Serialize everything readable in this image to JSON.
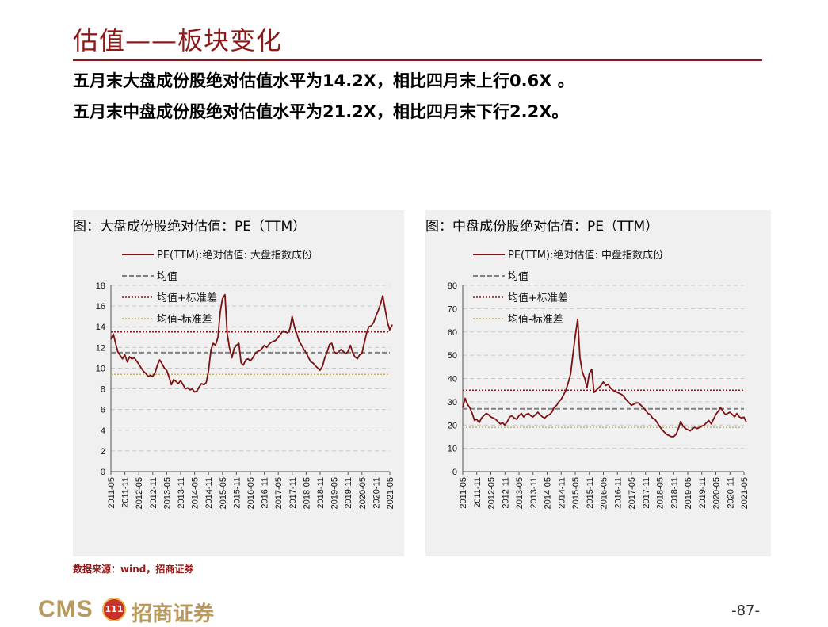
{
  "page": {
    "title": "估值——板块变化",
    "subtitle_1": "五月末大盘成份股绝对估值水平为14.2X，相比四月末上行0.6X 。",
    "subtitle_2": "五月末中盘成份股绝对估值水平为21.2X，相比四月末下行2.2X。",
    "source": "数据来源：wind，招商证券",
    "page_number": "-87-",
    "logo_text": "CMS",
    "logo_name": "招商证券",
    "logo_coin": "111"
  },
  "colors": {
    "accent": "#8B1A1A",
    "series": "#7B1113",
    "mean": "#808080",
    "plus_sd": "#8B1A1A",
    "minus_sd": "#C8B560"
  },
  "legend_labels": [
    "均值",
    "均值+标准差",
    "均值-标准差"
  ],
  "x_ticks": [
    "2011-05",
    "2011-11",
    "2012-05",
    "2012-11",
    "2013-05",
    "2013-11",
    "2014-05",
    "2014-11",
    "2015-05",
    "2015-11",
    "2016-05",
    "2016-11",
    "2017-05",
    "2017-11",
    "2018-05",
    "2018-11",
    "2019-05",
    "2019-11",
    "2020-05",
    "2020-11",
    "2021-05"
  ],
  "chart_data": [
    {
      "type": "line",
      "title": "图：大盘成份股绝对估值：PE（TTM）",
      "ylim": [
        0,
        18
      ],
      "yticks": [
        0,
        2,
        4,
        6,
        8,
        10,
        12,
        14,
        16,
        18
      ],
      "grid": true,
      "legend_position": "top-left",
      "series": [
        {
          "name": "PE(TTM):绝对估值: 大盘指数成份",
          "points": [
            [
              2011.33,
              12.8
            ],
            [
              2011.42,
              13.3
            ],
            [
              2011.5,
              12.4
            ],
            [
              2011.58,
              11.6
            ],
            [
              2011.67,
              11.2
            ],
            [
              2011.75,
              10.9
            ],
            [
              2011.83,
              11.3
            ],
            [
              2011.92,
              10.6
            ],
            [
              2012.0,
              11.1
            ],
            [
              2012.08,
              10.9
            ],
            [
              2012.17,
              11.0
            ],
            [
              2012.25,
              10.7
            ],
            [
              2012.33,
              10.4
            ],
            [
              2012.42,
              10.0
            ],
            [
              2012.5,
              9.7
            ],
            [
              2012.58,
              9.5
            ],
            [
              2012.67,
              9.2
            ],
            [
              2012.75,
              9.3
            ],
            [
              2012.83,
              9.2
            ],
            [
              2012.92,
              9.6
            ],
            [
              2013.0,
              10.3
            ],
            [
              2013.08,
              10.8
            ],
            [
              2013.17,
              10.4
            ],
            [
              2013.25,
              10.0
            ],
            [
              2013.33,
              9.8
            ],
            [
              2013.42,
              9.1
            ],
            [
              2013.5,
              8.4
            ],
            [
              2013.58,
              8.9
            ],
            [
              2013.67,
              8.7
            ],
            [
              2013.75,
              8.5
            ],
            [
              2013.83,
              8.8
            ],
            [
              2013.92,
              8.4
            ],
            [
              2014.0,
              8.0
            ],
            [
              2014.08,
              8.1
            ],
            [
              2014.17,
              7.9
            ],
            [
              2014.25,
              8.0
            ],
            [
              2014.33,
              7.7
            ],
            [
              2014.42,
              7.8
            ],
            [
              2014.5,
              8.2
            ],
            [
              2014.58,
              8.5
            ],
            [
              2014.67,
              8.4
            ],
            [
              2014.75,
              8.6
            ],
            [
              2014.83,
              9.7
            ],
            [
              2014.92,
              11.8
            ],
            [
              2015.0,
              12.4
            ],
            [
              2015.08,
              12.2
            ],
            [
              2015.17,
              13.0
            ],
            [
              2015.25,
              15.4
            ],
            [
              2015.33,
              16.7
            ],
            [
              2015.42,
              17.1
            ],
            [
              2015.5,
              13.4
            ],
            [
              2015.58,
              12.0
            ],
            [
              2015.67,
              11.0
            ],
            [
              2015.75,
              11.9
            ],
            [
              2015.83,
              12.2
            ],
            [
              2015.92,
              12.4
            ],
            [
              2016.0,
              10.5
            ],
            [
              2016.08,
              10.3
            ],
            [
              2016.17,
              10.8
            ],
            [
              2016.25,
              10.9
            ],
            [
              2016.33,
              10.7
            ],
            [
              2016.42,
              11.0
            ],
            [
              2016.5,
              11.4
            ],
            [
              2016.58,
              11.6
            ],
            [
              2016.67,
              11.7
            ],
            [
              2016.75,
              11.9
            ],
            [
              2016.83,
              12.2
            ],
            [
              2016.92,
              12.0
            ],
            [
              2017.0,
              12.3
            ],
            [
              2017.08,
              12.5
            ],
            [
              2017.17,
              12.6
            ],
            [
              2017.25,
              12.7
            ],
            [
              2017.33,
              13.0
            ],
            [
              2017.42,
              13.3
            ],
            [
              2017.5,
              13.6
            ],
            [
              2017.58,
              13.5
            ],
            [
              2017.67,
              13.4
            ],
            [
              2017.75,
              13.8
            ],
            [
              2017.83,
              15.0
            ],
            [
              2017.92,
              13.9
            ],
            [
              2018.0,
              13.3
            ],
            [
              2018.08,
              12.6
            ],
            [
              2018.17,
              12.2
            ],
            [
              2018.25,
              11.8
            ],
            [
              2018.33,
              11.5
            ],
            [
              2018.42,
              11.0
            ],
            [
              2018.5,
              10.6
            ],
            [
              2018.58,
              10.5
            ],
            [
              2018.67,
              10.2
            ],
            [
              2018.75,
              10.0
            ],
            [
              2018.83,
              9.8
            ],
            [
              2018.92,
              10.2
            ],
            [
              2019.0,
              11.0
            ],
            [
              2019.08,
              11.5
            ],
            [
              2019.17,
              12.3
            ],
            [
              2019.25,
              12.4
            ],
            [
              2019.33,
              11.6
            ],
            [
              2019.42,
              11.4
            ],
            [
              2019.5,
              11.6
            ],
            [
              2019.58,
              11.8
            ],
            [
              2019.67,
              11.6
            ],
            [
              2019.75,
              11.4
            ],
            [
              2019.83,
              11.6
            ],
            [
              2019.92,
              12.2
            ],
            [
              2020.0,
              11.5
            ],
            [
              2020.08,
              11.1
            ],
            [
              2020.17,
              10.9
            ],
            [
              2020.25,
              11.3
            ],
            [
              2020.33,
              11.4
            ],
            [
              2020.42,
              12.5
            ],
            [
              2020.5,
              13.4
            ],
            [
              2020.58,
              14.0
            ],
            [
              2020.67,
              14.1
            ],
            [
              2020.75,
              14.4
            ],
            [
              2020.83,
              15.0
            ],
            [
              2020.92,
              15.6
            ],
            [
              2021.0,
              16.2
            ],
            [
              2021.08,
              17.0
            ],
            [
              2021.17,
              15.6
            ],
            [
              2021.25,
              14.4
            ],
            [
              2021.33,
              13.7
            ],
            [
              2021.42,
              14.2
            ]
          ]
        }
      ],
      "reference_lines": {
        "mean": 11.5,
        "mean_plus_sd": 13.5,
        "mean_minus_sd": 9.4
      }
    },
    {
      "type": "line",
      "title": "图：中盘成份股绝对估值：PE（TTM）",
      "ylim": [
        0,
        80
      ],
      "yticks": [
        0,
        10,
        20,
        30,
        40,
        50,
        60,
        70,
        80
      ],
      "grid": true,
      "legend_position": "top-left",
      "series": [
        {
          "name": "PE(TTM):绝对估值: 中盘指数成份",
          "points": [
            [
              2011.33,
              27.5
            ],
            [
              2011.42,
              31.5
            ],
            [
              2011.5,
              29.0
            ],
            [
              2011.58,
              27.5
            ],
            [
              2011.67,
              25.0
            ],
            [
              2011.75,
              22.0
            ],
            [
              2011.83,
              22.5
            ],
            [
              2011.92,
              21.0
            ],
            [
              2012.0,
              23.0
            ],
            [
              2012.08,
              24.0
            ],
            [
              2012.17,
              25.0
            ],
            [
              2012.25,
              24.5
            ],
            [
              2012.33,
              23.5
            ],
            [
              2012.42,
              23.0
            ],
            [
              2012.5,
              22.5
            ],
            [
              2012.58,
              21.5
            ],
            [
              2012.67,
              20.5
            ],
            [
              2012.75,
              21.0
            ],
            [
              2012.83,
              20.0
            ],
            [
              2012.92,
              21.5
            ],
            [
              2013.0,
              23.5
            ],
            [
              2013.08,
              24.0
            ],
            [
              2013.17,
              23.0
            ],
            [
              2013.25,
              22.5
            ],
            [
              2013.33,
              24.0
            ],
            [
              2013.42,
              25.0
            ],
            [
              2013.5,
              23.5
            ],
            [
              2013.58,
              24.5
            ],
            [
              2013.67,
              25.0
            ],
            [
              2013.75,
              24.0
            ],
            [
              2013.83,
              23.5
            ],
            [
              2013.92,
              24.5
            ],
            [
              2014.0,
              25.5
            ],
            [
              2014.08,
              24.5
            ],
            [
              2014.17,
              23.5
            ],
            [
              2014.25,
              23.0
            ],
            [
              2014.33,
              24.0
            ],
            [
              2014.42,
              24.5
            ],
            [
              2014.5,
              25.5
            ],
            [
              2014.58,
              27.5
            ],
            [
              2014.67,
              28.5
            ],
            [
              2014.75,
              30.0
            ],
            [
              2014.83,
              31.0
            ],
            [
              2014.92,
              33.0
            ],
            [
              2015.0,
              35.0
            ],
            [
              2015.08,
              38.0
            ],
            [
              2015.17,
              42.0
            ],
            [
              2015.25,
              50.0
            ],
            [
              2015.33,
              58.0
            ],
            [
              2015.42,
              65.5
            ],
            [
              2015.5,
              49.0
            ],
            [
              2015.58,
              43.0
            ],
            [
              2015.67,
              40.0
            ],
            [
              2015.75,
              36.0
            ],
            [
              2015.83,
              42.0
            ],
            [
              2015.92,
              44.0
            ],
            [
              2016.0,
              34.0
            ],
            [
              2016.08,
              35.0
            ],
            [
              2016.17,
              36.0
            ],
            [
              2016.25,
              37.0
            ],
            [
              2016.33,
              38.5
            ],
            [
              2016.42,
              37.0
            ],
            [
              2016.5,
              37.5
            ],
            [
              2016.58,
              36.0
            ],
            [
              2016.67,
              35.0
            ],
            [
              2016.75,
              34.5
            ],
            [
              2016.83,
              34.0
            ],
            [
              2016.92,
              33.5
            ],
            [
              2017.0,
              33.0
            ],
            [
              2017.08,
              32.0
            ],
            [
              2017.17,
              30.5
            ],
            [
              2017.25,
              29.5
            ],
            [
              2017.33,
              28.5
            ],
            [
              2017.42,
              29.0
            ],
            [
              2017.5,
              29.5
            ],
            [
              2017.58,
              29.5
            ],
            [
              2017.67,
              28.5
            ],
            [
              2017.75,
              27.5
            ],
            [
              2017.83,
              26.5
            ],
            [
              2017.92,
              25.0
            ],
            [
              2018.0,
              24.5
            ],
            [
              2018.08,
              23.0
            ],
            [
              2018.17,
              22.5
            ],
            [
              2018.25,
              21.0
            ],
            [
              2018.33,
              19.5
            ],
            [
              2018.42,
              18.0
            ],
            [
              2018.5,
              17.0
            ],
            [
              2018.58,
              16.0
            ],
            [
              2018.67,
              15.5
            ],
            [
              2018.75,
              15.0
            ],
            [
              2018.83,
              15.0
            ],
            [
              2018.92,
              16.0
            ],
            [
              2019.0,
              18.5
            ],
            [
              2019.08,
              21.5
            ],
            [
              2019.17,
              19.5
            ],
            [
              2019.25,
              18.5
            ],
            [
              2019.33,
              18.0
            ],
            [
              2019.42,
              17.5
            ],
            [
              2019.5,
              18.5
            ],
            [
              2019.58,
              19.0
            ],
            [
              2019.67,
              18.5
            ],
            [
              2019.75,
              19.0
            ],
            [
              2019.83,
              19.5
            ],
            [
              2019.92,
              20.0
            ],
            [
              2020.0,
              21.0
            ],
            [
              2020.08,
              22.0
            ],
            [
              2020.17,
              20.5
            ],
            [
              2020.25,
              22.5
            ],
            [
              2020.33,
              24.5
            ],
            [
              2020.42,
              26.0
            ],
            [
              2020.5,
              27.5
            ],
            [
              2020.58,
              26.0
            ],
            [
              2020.67,
              24.5
            ],
            [
              2020.75,
              25.0
            ],
            [
              2020.83,
              25.5
            ],
            [
              2020.92,
              24.5
            ],
            [
              2021.0,
              23.5
            ],
            [
              2021.08,
              25.0
            ],
            [
              2021.17,
              23.5
            ],
            [
              2021.25,
              23.0
            ],
            [
              2021.33,
              23.4
            ],
            [
              2021.42,
              21.2
            ]
          ]
        }
      ],
      "reference_lines": {
        "mean": 27.0,
        "mean_plus_sd": 35.0,
        "mean_minus_sd": 19.0
      }
    }
  ]
}
